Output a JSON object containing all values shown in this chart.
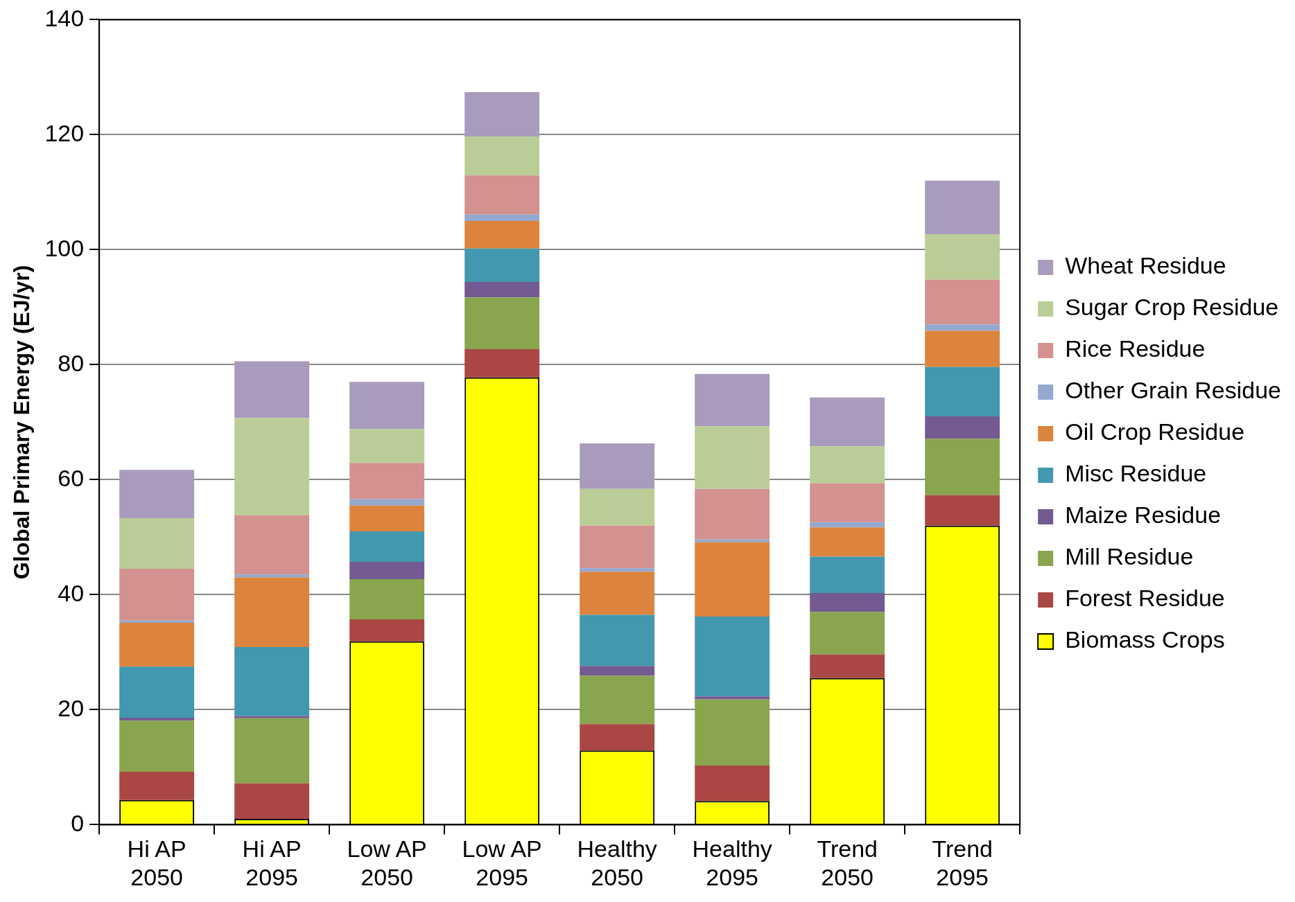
{
  "chart_data": {
    "type": "bar",
    "stacked": true,
    "ylabel": "Global Primary Energy (EJ/yr)",
    "categories": [
      "Hi AP\n2050",
      "Hi AP\n2095",
      "Low AP\n2050",
      "Low AP\n2095",
      "Healthy\n2050",
      "Healthy\n2095",
      "Trend\n2050",
      "Trend\n2095"
    ],
    "ylim": [
      0,
      140
    ],
    "yticks": [
      0,
      20,
      40,
      60,
      80,
      100,
      120,
      140
    ],
    "grid": "y",
    "legend": "right",
    "series": [
      {
        "name": "Biomass Crops",
        "color": "#ffff00",
        "values": [
          4.3,
          1.0,
          31.9,
          77.8,
          12.9,
          4.1,
          25.5,
          52.0
        ]
      },
      {
        "name": "Forest Residue",
        "color": "#aa4744",
        "values": [
          4.9,
          6.2,
          3.8,
          4.9,
          4.6,
          6.2,
          4.1,
          5.3
        ]
      },
      {
        "name": "Mill Residue",
        "color": "#89a54e",
        "values": [
          8.9,
          11.3,
          7.0,
          9.0,
          8.4,
          11.5,
          7.4,
          9.8
        ]
      },
      {
        "name": "Maize Residue",
        "color": "#735a90",
        "values": [
          0.5,
          0.4,
          3.0,
          2.7,
          1.7,
          0.5,
          3.3,
          3.9
        ]
      },
      {
        "name": "Misc Residue",
        "color": "#4298ae",
        "values": [
          8.9,
          12.0,
          5.3,
          5.8,
          8.9,
          13.9,
          6.3,
          8.6
        ]
      },
      {
        "name": "Oil Crop Residue",
        "color": "#dc843d",
        "values": [
          7.6,
          12.1,
          4.5,
          4.8,
          7.5,
          12.9,
          5.1,
          6.3
        ]
      },
      {
        "name": "Other Grain Residue",
        "color": "#93a9cf",
        "values": [
          0.4,
          0.5,
          1.1,
          1.1,
          0.6,
          0.5,
          0.9,
          1.1
        ]
      },
      {
        "name": "Rice Residue",
        "color": "#d39190",
        "values": [
          9.0,
          10.3,
          6.3,
          6.8,
          7.4,
          8.8,
          6.8,
          7.8
        ]
      },
      {
        "name": "Sugar Crop Residue",
        "color": "#bacd96",
        "values": [
          8.8,
          16.9,
          5.9,
          6.8,
          6.4,
          10.9,
          6.4,
          7.9
        ]
      },
      {
        "name": "Wheat Residue",
        "color": "#a99bbd",
        "values": [
          8.4,
          9.9,
          8.2,
          7.7,
          7.9,
          9.1,
          8.5,
          9.3
        ]
      }
    ]
  }
}
